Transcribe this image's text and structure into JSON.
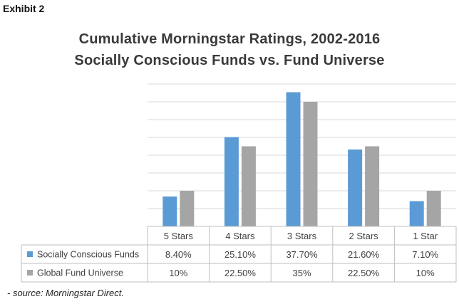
{
  "exhibit_label": "Exhibit 2",
  "source_note": "- source: Morningstar Direct.",
  "chart_data": {
    "type": "bar",
    "title": "Cumulative Morningstar Ratings, 2002-2016",
    "subtitle": "Socially Conscious Funds vs. Fund Universe",
    "categories": [
      "5 Stars",
      "4 Stars",
      "3 Stars",
      "2 Stars",
      "1 Star"
    ],
    "series": [
      {
        "name": "Socially Conscious Funds",
        "color": "#5b9bd5",
        "values": [
          8.4,
          25.1,
          37.7,
          21.6,
          7.1
        ],
        "labels": [
          "8.40%",
          "25.10%",
          "37.70%",
          "21.60%",
          "7.10%"
        ]
      },
      {
        "name": "Global Fund Universe",
        "color": "#a5a5a5",
        "values": [
          10,
          22.5,
          35,
          22.5,
          10
        ],
        "labels": [
          "10%",
          "22.50%",
          "35%",
          "22.50%",
          "10%"
        ]
      }
    ],
    "ylim": [
      0,
      40
    ],
    "grid": true,
    "data_table": true
  }
}
